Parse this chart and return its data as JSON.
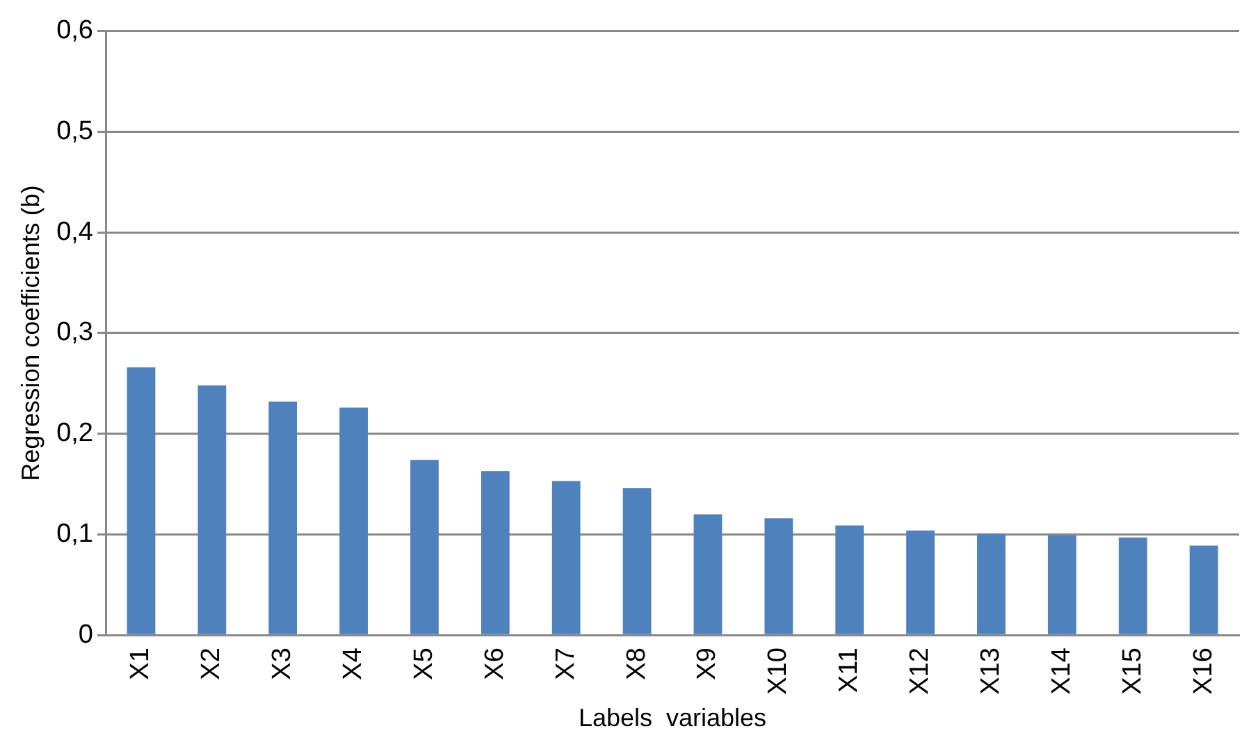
{
  "chart_data": {
    "type": "bar",
    "xlabel": "Labels  variables",
    "ylabel": "Regression coefficients (b)",
    "categories": [
      "X1",
      "X2",
      "X3",
      "X4",
      "X5",
      "X6",
      "X7",
      "X8",
      "X9",
      "X10",
      "X11",
      "X12",
      "X13",
      "X14",
      "X15",
      "X16"
    ],
    "values": [
      0.266,
      0.248,
      0.232,
      0.226,
      0.174,
      0.163,
      0.153,
      0.146,
      0.12,
      0.116,
      0.109,
      0.104,
      0.101,
      0.099,
      0.097,
      0.089
    ],
    "color": "#4f81bd",
    "ylim": [
      0,
      0.6
    ],
    "yticks": [
      {
        "value": 0,
        "label": "0"
      },
      {
        "value": 0.1,
        "label": "0,1"
      },
      {
        "value": 0.2,
        "label": "0,2"
      },
      {
        "value": 0.3,
        "label": "0,3"
      },
      {
        "value": 0.4,
        "label": "0,4"
      },
      {
        "value": 0.5,
        "label": "0,5"
      },
      {
        "value": 0.6,
        "label": "0,6"
      }
    ],
    "grid": "y"
  }
}
